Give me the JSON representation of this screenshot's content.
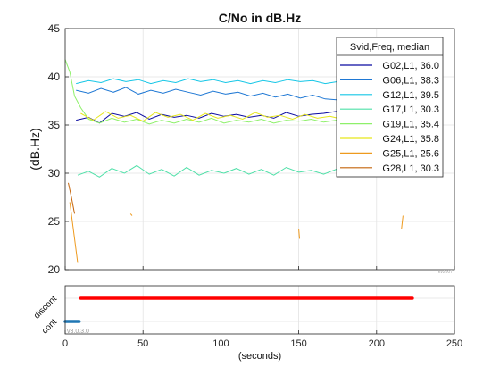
{
  "chart_data": [
    {
      "type": "line",
      "title": "C/No in dB.Hz",
      "ylabel": "(dB.Hz)",
      "xlabel": "",
      "xlim": [
        0,
        250
      ],
      "ylim": [
        20,
        45
      ],
      "xticks": [
        0,
        50,
        100,
        150,
        200,
        250
      ],
      "yticks": [
        20,
        25,
        30,
        35,
        40,
        45
      ],
      "grid": true,
      "legend_title": "Svid,Freq, median",
      "legend_position": "top-right",
      "corner_note": "kv2007",
      "series": [
        {
          "name": "G02,L1, 36.0",
          "color": "#0a0aa0",
          "points": [
            [
              7,
              35.5
            ],
            [
              15,
              35.8
            ],
            [
              22,
              35.2
            ],
            [
              30,
              36.2
            ],
            [
              38,
              35.9
            ],
            [
              46,
              36.3
            ],
            [
              54,
              35.6
            ],
            [
              62,
              36.1
            ],
            [
              70,
              35.8
            ],
            [
              78,
              36.0
            ],
            [
              86,
              35.7
            ],
            [
              94,
              36.2
            ],
            [
              102,
              35.9
            ],
            [
              110,
              36.1
            ],
            [
              118,
              35.8
            ],
            [
              126,
              36.0
            ],
            [
              134,
              35.7
            ],
            [
              142,
              36.3
            ],
            [
              150,
              35.9
            ],
            [
              158,
              36.1
            ],
            [
              166,
              36.2
            ],
            [
              174,
              36.4
            ],
            [
              182,
              36.0
            ]
          ]
        },
        {
          "name": "G06,L1, 38.3",
          "color": "#1f78d4",
          "points": [
            [
              7,
              38.6
            ],
            [
              15,
              38.3
            ],
            [
              23,
              38.8
            ],
            [
              31,
              38.4
            ],
            [
              39,
              38.9
            ],
            [
              47,
              38.2
            ],
            [
              55,
              38.6
            ],
            [
              63,
              38.3
            ],
            [
              71,
              38.7
            ],
            [
              79,
              38.4
            ],
            [
              87,
              38.1
            ],
            [
              95,
              38.5
            ],
            [
              103,
              38.2
            ],
            [
              111,
              38.4
            ],
            [
              119,
              38.0
            ],
            [
              127,
              38.3
            ],
            [
              135,
              37.9
            ],
            [
              143,
              38.2
            ],
            [
              151,
              37.8
            ],
            [
              159,
              38.1
            ],
            [
              167,
              37.7
            ],
            [
              175,
              37.6
            ],
            [
              182,
              37.9
            ]
          ]
        },
        {
          "name": "G12,L1, 39.5",
          "color": "#15c6e6",
          "points": [
            [
              7,
              39.3
            ],
            [
              15,
              39.6
            ],
            [
              23,
              39.4
            ],
            [
              31,
              39.8
            ],
            [
              39,
              39.5
            ],
            [
              47,
              39.7
            ],
            [
              55,
              39.3
            ],
            [
              63,
              39.6
            ],
            [
              71,
              39.4
            ],
            [
              79,
              39.8
            ],
            [
              87,
              39.5
            ],
            [
              95,
              39.7
            ],
            [
              103,
              39.4
            ],
            [
              111,
              39.6
            ],
            [
              119,
              39.3
            ],
            [
              127,
              39.6
            ],
            [
              135,
              39.4
            ],
            [
              143,
              39.7
            ],
            [
              151,
              39.5
            ],
            [
              159,
              39.6
            ],
            [
              167,
              39.3
            ],
            [
              175,
              39.5
            ],
            [
              182,
              39.4
            ]
          ]
        },
        {
          "name": "G17,L1, 30.3",
          "color": "#4fe0a8",
          "points": [
            [
              8,
              29.8
            ],
            [
              15,
              30.2
            ],
            [
              22,
              29.6
            ],
            [
              30,
              30.5
            ],
            [
              38,
              30.0
            ],
            [
              46,
              30.8
            ],
            [
              54,
              29.9
            ],
            [
              62,
              30.4
            ],
            [
              70,
              29.7
            ],
            [
              78,
              30.6
            ],
            [
              86,
              29.8
            ],
            [
              94,
              30.3
            ],
            [
              102,
              30.0
            ],
            [
              110,
              30.5
            ],
            [
              118,
              29.9
            ],
            [
              126,
              30.4
            ],
            [
              134,
              29.8
            ],
            [
              142,
              30.6
            ],
            [
              150,
              30.1
            ],
            [
              158,
              30.3
            ],
            [
              166,
              29.9
            ],
            [
              174,
              30.4
            ],
            [
              182,
              30.2
            ]
          ]
        },
        {
          "name": "G19,L1, 35.4",
          "color": "#8ef06a",
          "points": [
            [
              0,
              41.8
            ],
            [
              3,
              40.5
            ],
            [
              6,
              38.0
            ],
            [
              10,
              36.8
            ],
            [
              15,
              35.6
            ],
            [
              22,
              35.2
            ],
            [
              30,
              35.7
            ],
            [
              38,
              35.3
            ],
            [
              46,
              35.6
            ],
            [
              54,
              35.1
            ],
            [
              62,
              35.5
            ],
            [
              70,
              35.2
            ],
            [
              78,
              35.6
            ],
            [
              86,
              35.3
            ],
            [
              94,
              35.7
            ],
            [
              102,
              35.2
            ],
            [
              110,
              35.5
            ],
            [
              118,
              35.3
            ],
            [
              126,
              35.6
            ],
            [
              134,
              35.2
            ],
            [
              142,
              35.5
            ],
            [
              150,
              35.4
            ],
            [
              158,
              35.6
            ],
            [
              166,
              35.3
            ],
            [
              174,
              35.5
            ],
            [
              182,
              35.4
            ]
          ]
        },
        {
          "name": "G24,L1, 35.8",
          "color": "#e6e61a",
          "points": [
            [
              10,
              36.2
            ],
            [
              18,
              35.5
            ],
            [
              26,
              36.4
            ],
            [
              34,
              35.7
            ],
            [
              42,
              36.0
            ],
            [
              50,
              35.4
            ],
            [
              58,
              36.3
            ],
            [
              66,
              35.8
            ],
            [
              74,
              36.1
            ],
            [
              82,
              35.5
            ],
            [
              90,
              36.2
            ],
            [
              98,
              35.7
            ],
            [
              106,
              36.0
            ],
            [
              114,
              35.6
            ],
            [
              122,
              36.3
            ],
            [
              130,
              35.8
            ],
            [
              138,
              36.0
            ],
            [
              146,
              35.6
            ],
            [
              154,
              36.1
            ],
            [
              162,
              35.7
            ],
            [
              170,
              35.9
            ],
            [
              178,
              35.6
            ]
          ]
        },
        {
          "name": "G25,L1, 25.6",
          "color": "#ee9a1e",
          "points": [
            [
              3,
              27.0
            ],
            [
              5,
              24.5
            ],
            [
              7,
              22.0
            ],
            [
              8,
              20.7
            ]
          ]
        },
        {
          "name": "G28,L1, 30.3",
          "color": "#c4640a",
          "points": [
            [
              2,
              29.0
            ],
            [
              4,
              27.5
            ],
            [
              6,
              25.8
            ]
          ]
        }
      ],
      "extra_segments": [
        {
          "color": "#ee9a1e",
          "points": [
            [
              42,
              25.8
            ],
            [
              43,
              25.6
            ]
          ]
        },
        {
          "color": "#ee9a1e",
          "points": [
            [
              150,
              24.2
            ],
            [
              150.5,
              23.2
            ]
          ]
        },
        {
          "color": "#ee9a1e",
          "points": [
            [
              216,
              24.2
            ],
            [
              217,
              25.6
            ]
          ]
        }
      ]
    },
    {
      "type": "scatter",
      "title": "",
      "xlabel": "(seconds)",
      "ylabel": "",
      "xlim": [
        0,
        250
      ],
      "xticks": [
        0,
        50,
        100,
        150,
        200,
        250
      ],
      "ytick_labels": [
        "cont",
        "discont"
      ],
      "annotation": "v3.0.3.0",
      "series": [
        {
          "name": "",
          "color": "#ff0000",
          "level": "discont",
          "x_range": [
            10,
            223
          ]
        },
        {
          "name": "",
          "color": "#1f77b4",
          "level": "cont",
          "x_range": [
            0,
            9
          ]
        }
      ]
    }
  ]
}
